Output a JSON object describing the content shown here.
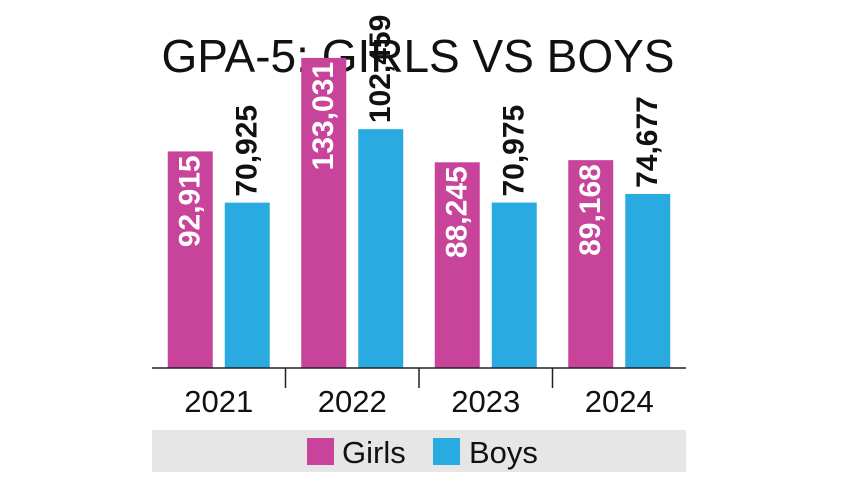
{
  "chart_data": {
    "type": "bar",
    "title": "GPA-5: GIRLS VS BOYS",
    "categories": [
      "2021",
      "2022",
      "2023",
      "2024"
    ],
    "series": [
      {
        "name": "Girls",
        "color": "#c8449a",
        "values": [
          92915,
          133031,
          88245,
          89168
        ],
        "labels": [
          "92,915",
          "133,031",
          "88,245",
          "89,168"
        ]
      },
      {
        "name": "Boys",
        "color": "#29abe2",
        "values": [
          70925,
          102459,
          70975,
          74677
        ],
        "labels": [
          "70,925",
          "102,459",
          "70,975",
          "74,677"
        ]
      }
    ],
    "ylim": [
      0,
      145000
    ],
    "grid": false,
    "legend_position": "bottom",
    "legend_background": "#e6e6e6"
  }
}
